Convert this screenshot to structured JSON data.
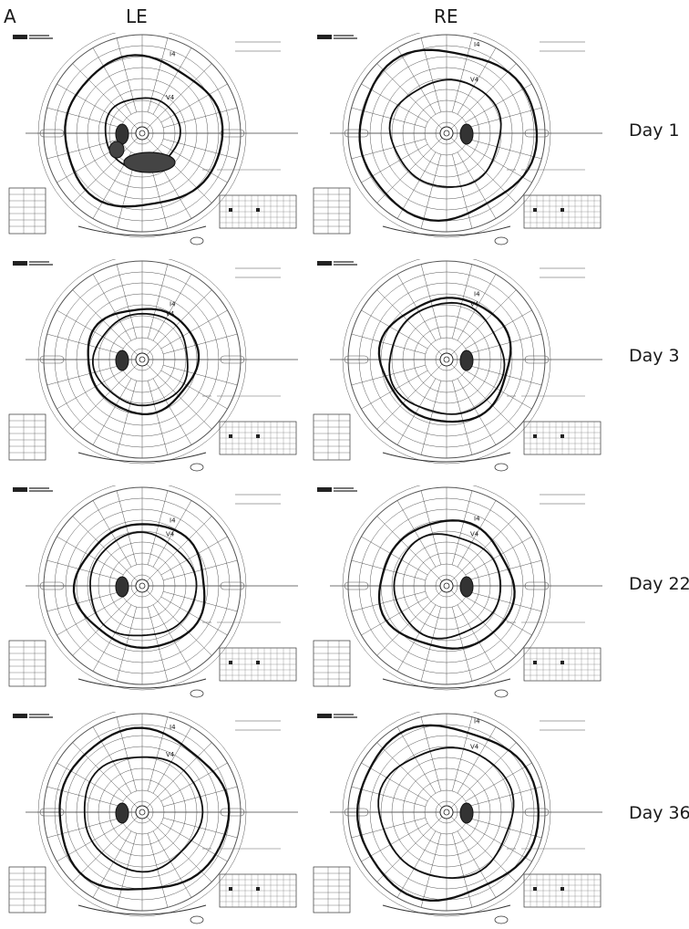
{
  "figure": {
    "panel_label": "A",
    "columns": [
      {
        "id": "le",
        "label": "LE"
      },
      {
        "id": "re",
        "label": "RE"
      }
    ],
    "rows": [
      {
        "day": "Day 1"
      },
      {
        "day": "Day 3"
      },
      {
        "day": "Day 22"
      },
      {
        "day": "Day 36"
      }
    ]
  },
  "perimetry": {
    "type": "goldmann-visual-field",
    "isopter_labels": [
      "I4",
      "V4"
    ],
    "charts": [
      {
        "eye": "LE",
        "day": "Day 1",
        "outer_scale": 0.8,
        "inner_scale": 0.38,
        "blind_spot": "left",
        "scotoma": true
      },
      {
        "eye": "RE",
        "day": "Day 1",
        "outer_scale": 0.9,
        "inner_scale": 0.56,
        "blind_spot": "right",
        "scotoma": false
      },
      {
        "eye": "LE",
        "day": "Day 3",
        "outer_scale": 0.56,
        "inner_scale": 0.48,
        "blind_spot": "left",
        "scotoma": false
      },
      {
        "eye": "RE",
        "day": "Day 3",
        "outer_scale": 0.66,
        "inner_scale": 0.58,
        "blind_spot": "right",
        "scotoma": false
      },
      {
        "eye": "LE",
        "day": "Day 22",
        "outer_scale": 0.66,
        "inner_scale": 0.54,
        "blind_spot": "left",
        "scotoma": false
      },
      {
        "eye": "RE",
        "day": "Day 22",
        "outer_scale": 0.68,
        "inner_scale": 0.54,
        "blind_spot": "right",
        "scotoma": false
      },
      {
        "eye": "LE",
        "day": "Day 36",
        "outer_scale": 0.86,
        "inner_scale": 0.6,
        "blind_spot": "left",
        "scotoma": false
      },
      {
        "eye": "RE",
        "day": "Day 36",
        "outer_scale": 0.92,
        "inner_scale": 0.68,
        "blind_spot": "right",
        "scotoma": false
      }
    ]
  }
}
